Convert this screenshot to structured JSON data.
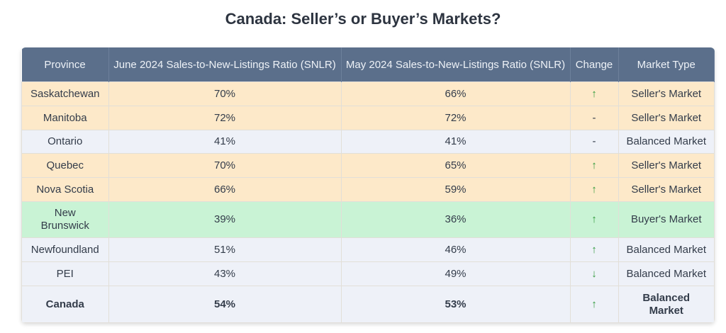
{
  "title": "Canada: Seller’s or Buyer’s Markets?",
  "headers": [
    "Province",
    "June 2024 Sales-to-New-Listings Ratio (SNLR)",
    "May 2024 Sales-to-New-Listings Ratio (SNLR)",
    "Change",
    "Market Type"
  ],
  "rows": [
    {
      "province": "Saskatchewan",
      "june": "70%",
      "may": "66%",
      "change": "↑",
      "market": "Seller's Market",
      "type": "seller"
    },
    {
      "province": "Manitoba",
      "june": "72%",
      "may": "72%",
      "change": "-",
      "market": "Seller's Market",
      "type": "seller"
    },
    {
      "province": "Ontario",
      "june": "41%",
      "may": "41%",
      "change": "-",
      "market": "Balanced Market",
      "type": "balanced"
    },
    {
      "province": "Quebec",
      "june": "70%",
      "may": "65%",
      "change": "↑",
      "market": "Seller's Market",
      "type": "seller"
    },
    {
      "province": "Nova Scotia",
      "june": "66%",
      "may": "59%",
      "change": "↑",
      "market": "Seller's Market",
      "type": "seller"
    },
    {
      "province": "New Brunswick",
      "june": "39%",
      "may": "36%",
      "change": "↑",
      "market": "Buyer's Market",
      "type": "buyer"
    },
    {
      "province": "Newfoundland",
      "june": "51%",
      "may": "46%",
      "change": "↑",
      "market": "Balanced Market",
      "type": "balanced"
    },
    {
      "province": "PEI",
      "june": "43%",
      "may": "49%",
      "change": "↓",
      "market": "Balanced Market",
      "type": "balanced"
    },
    {
      "province": "Canada",
      "june": "54%",
      "may": "53%",
      "change": "↑",
      "market": "Balanced Market",
      "type": "balanced total"
    }
  ]
}
